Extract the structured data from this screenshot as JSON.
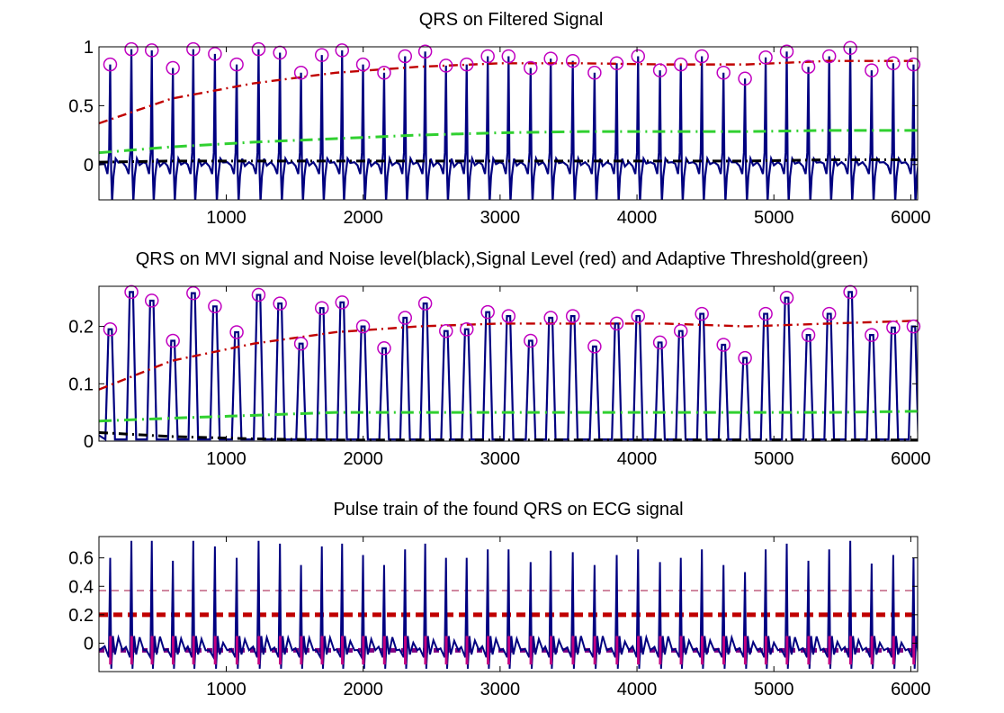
{
  "chart_data": [
    {
      "type": "line",
      "title": "QRS on Filtered Signal",
      "xlabel": "",
      "ylabel": "",
      "xlim": [
        70,
        6050
      ],
      "ylim": [
        -0.3,
        1.0
      ],
      "xticks": [
        1000,
        2000,
        3000,
        4000,
        5000,
        6000
      ],
      "xtick_labels": [
        "1000",
        "2000",
        "3000",
        "4000",
        "5000",
        "6000"
      ],
      "yticks": [
        0,
        0.5,
        1
      ],
      "ytick_labels": [
        "0",
        "0.5",
        "1"
      ],
      "grid": false,
      "series": [
        {
          "role": "ecg",
          "color": "#000080"
        },
        {
          "role": "peaks",
          "color": "#c000c0",
          "x": [
            152,
            307,
            456,
            610,
            759,
            917,
            1076,
            1236,
            1392,
            1546,
            1698,
            1846,
            1999,
            2153,
            2306,
            2453,
            2605,
            2756,
            2910,
            3062,
            3223,
            3370,
            3531,
            3690,
            3852,
            4008,
            4168,
            4320,
            4474,
            4632,
            4789,
            4940,
            5094,
            5252,
            5404,
            5558,
            5714,
            5872,
            6020
          ],
          "values": [
            0.85,
            0.98,
            0.97,
            0.82,
            0.98,
            0.94,
            0.85,
            0.98,
            0.95,
            0.78,
            0.93,
            0.97,
            0.85,
            0.78,
            0.92,
            0.96,
            0.84,
            0.85,
            0.92,
            0.92,
            0.82,
            0.9,
            0.88,
            0.78,
            0.86,
            0.92,
            0.8,
            0.85,
            0.92,
            0.78,
            0.73,
            0.91,
            0.96,
            0.83,
            0.92,
            0.99,
            0.8,
            0.86,
            0.85
          ]
        },
        {
          "role": "signal-level",
          "color": "#c00000",
          "x": [
            70,
            600,
            1200,
            1800,
            2400,
            3000,
            3600,
            4200,
            4800,
            5400,
            6050
          ],
          "values": [
            0.35,
            0.56,
            0.69,
            0.78,
            0.83,
            0.86,
            0.86,
            0.85,
            0.85,
            0.88,
            0.88
          ]
        },
        {
          "role": "noise-level",
          "color": "#000000",
          "x": [
            70,
            600,
            1200,
            1800,
            2400,
            3000,
            3600,
            4200,
            4800,
            5400,
            6050
          ],
          "values": [
            0.02,
            0.03,
            0.03,
            0.03,
            0.03,
            0.03,
            0.03,
            0.03,
            0.03,
            0.04,
            0.04
          ]
        },
        {
          "role": "adaptive-threshold",
          "color": "#30d030",
          "x": [
            70,
            600,
            1200,
            1800,
            2400,
            3000,
            3600,
            4200,
            4800,
            5400,
            6050
          ],
          "values": [
            0.1,
            0.15,
            0.19,
            0.22,
            0.25,
            0.27,
            0.28,
            0.28,
            0.28,
            0.29,
            0.29
          ]
        }
      ]
    },
    {
      "type": "line",
      "title": "QRS on MVI signal and Noise level(black),Signal Level (red) and Adaptive Threshold(green)",
      "xlabel": "",
      "ylabel": "",
      "xlim": [
        70,
        6050
      ],
      "ylim": [
        0,
        0.27
      ],
      "xticks": [
        1000,
        2000,
        3000,
        4000,
        5000,
        6000
      ],
      "xtick_labels": [
        "1000",
        "2000",
        "3000",
        "4000",
        "5000",
        "6000"
      ],
      "yticks": [
        0,
        0.1,
        0.2
      ],
      "ytick_labels": [
        "0",
        "0.1",
        "0.2"
      ],
      "grid": false,
      "series": [
        {
          "role": "mvi",
          "color": "#000080"
        },
        {
          "role": "peaks",
          "color": "#c000c0",
          "x": [
            152,
            307,
            456,
            610,
            759,
            917,
            1076,
            1236,
            1392,
            1546,
            1698,
            1846,
            1999,
            2153,
            2306,
            2453,
            2605,
            2756,
            2910,
            3062,
            3223,
            3370,
            3531,
            3690,
            3852,
            4008,
            4168,
            4320,
            4474,
            4632,
            4789,
            4940,
            5094,
            5252,
            5404,
            5558,
            5714,
            5872,
            6020
          ],
          "values": [
            0.195,
            0.26,
            0.245,
            0.175,
            0.258,
            0.235,
            0.19,
            0.255,
            0.24,
            0.17,
            0.232,
            0.242,
            0.2,
            0.162,
            0.215,
            0.24,
            0.192,
            0.195,
            0.225,
            0.218,
            0.175,
            0.215,
            0.218,
            0.165,
            0.205,
            0.218,
            0.172,
            0.192,
            0.222,
            0.168,
            0.145,
            0.222,
            0.25,
            0.185,
            0.222,
            0.26,
            0.185,
            0.198,
            0.2
          ]
        },
        {
          "role": "signal-level",
          "color": "#c00000",
          "x": [
            70,
            600,
            1200,
            1800,
            2400,
            3000,
            3600,
            4200,
            4800,
            5400,
            6050
          ],
          "values": [
            0.09,
            0.14,
            0.17,
            0.19,
            0.2,
            0.205,
            0.205,
            0.205,
            0.2,
            0.205,
            0.21
          ]
        },
        {
          "role": "noise-level",
          "color": "#000000",
          "x": [
            70,
            600,
            1200,
            1800,
            2400,
            3000,
            3600,
            4200,
            4800,
            5400,
            6050
          ],
          "values": [
            0.015,
            0.008,
            0.004,
            0.002,
            0.002,
            0.002,
            0.002,
            0.002,
            0.002,
            0.002,
            0.002
          ]
        },
        {
          "role": "adaptive-threshold",
          "color": "#30d030",
          "x": [
            70,
            600,
            1200,
            1800,
            2400,
            3000,
            3600,
            4200,
            4800,
            5400,
            6050
          ],
          "values": [
            0.035,
            0.04,
            0.045,
            0.05,
            0.05,
            0.05,
            0.05,
            0.05,
            0.05,
            0.05,
            0.052
          ]
        }
      ]
    },
    {
      "type": "line",
      "title": "Pulse train of the found QRS on ECG signal",
      "xlabel": "",
      "ylabel": "",
      "xlim": [
        70,
        6050
      ],
      "ylim": [
        -0.2,
        0.75
      ],
      "xticks": [
        1000,
        2000,
        3000,
        4000,
        5000,
        6000
      ],
      "xtick_labels": [
        "1000",
        "2000",
        "3000",
        "4000",
        "5000",
        "6000"
      ],
      "yticks": [
        0,
        0.2,
        0.4,
        0.6
      ],
      "ytick_labels": [
        "0",
        "0.2",
        "0.4",
        "0.6"
      ],
      "grid": false,
      "series": [
        {
          "role": "ecg",
          "color": "#000080",
          "x": [
            152,
            307,
            456,
            610,
            759,
            917,
            1076,
            1236,
            1392,
            1546,
            1698,
            1846,
            1999,
            2153,
            2306,
            2453,
            2605,
            2756,
            2910,
            3062,
            3223,
            3370,
            3531,
            3690,
            3852,
            4008,
            4168,
            4320,
            4474,
            4632,
            4789,
            4940,
            5094,
            5252,
            5404,
            5558,
            5714,
            5872,
            6020
          ],
          "values": [
            0.6,
            0.72,
            0.72,
            0.58,
            0.72,
            0.68,
            0.6,
            0.72,
            0.7,
            0.55,
            0.68,
            0.7,
            0.62,
            0.55,
            0.66,
            0.7,
            0.6,
            0.6,
            0.66,
            0.66,
            0.57,
            0.65,
            0.64,
            0.55,
            0.62,
            0.66,
            0.57,
            0.6,
            0.66,
            0.55,
            0.5,
            0.66,
            0.7,
            0.58,
            0.66,
            0.72,
            0.56,
            0.62,
            0.6
          ]
        },
        {
          "role": "pulse-train-high",
          "color": "#c06080",
          "value": 0.37
        },
        {
          "role": "pulse-train-mid",
          "color": "#c00000",
          "value": 0.2
        },
        {
          "role": "pulse-train-low",
          "color": "#800080",
          "value": -0.05
        }
      ]
    }
  ]
}
